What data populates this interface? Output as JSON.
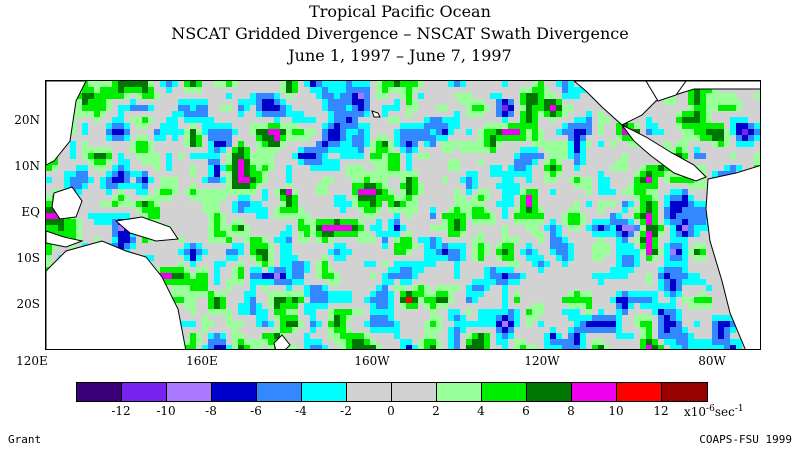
{
  "header": {
    "title": "Tropical Pacific Ocean",
    "subtitle": "NSCAT Gridded Divergence – NSCAT Swath Divergence",
    "date_range": "June 1, 1997 – June 7, 1997"
  },
  "map": {
    "lon_range_deg_east": [
      120,
      288
    ],
    "lat_range_deg": [
      -28,
      28
    ],
    "lat_labels": [
      "20N",
      "10N",
      "EQ",
      "10S",
      "20S"
    ],
    "lon_labels": [
      "120E",
      "160E",
      "160W",
      "120W",
      "80W"
    ],
    "field": "gridded minus swath divergence (x10^-6 sec^-1)"
  },
  "colorbar": {
    "colors": [
      "#3a0077",
      "#7722ee",
      "#aa77ff",
      "#0000cc",
      "#3388ff",
      "#00ffff",
      "#d2d2d2",
      "#d2d2d2",
      "#99ff99",
      "#00ee00",
      "#007700",
      "#ee00ee",
      "#ff0000",
      "#990000"
    ],
    "tick_labels": [
      "-12",
      "-10",
      "-8",
      "-6",
      "-4",
      "-2",
      "0",
      "2",
      "4",
      "6",
      "8",
      "10",
      "12"
    ],
    "units_prefix": "x10",
    "units_exp": "-6",
    "units_suffix": "sec",
    "units_suffix_exp": "-1"
  },
  "footer": {
    "left": "Grant",
    "right": "COAPS-FSU 1999"
  }
}
